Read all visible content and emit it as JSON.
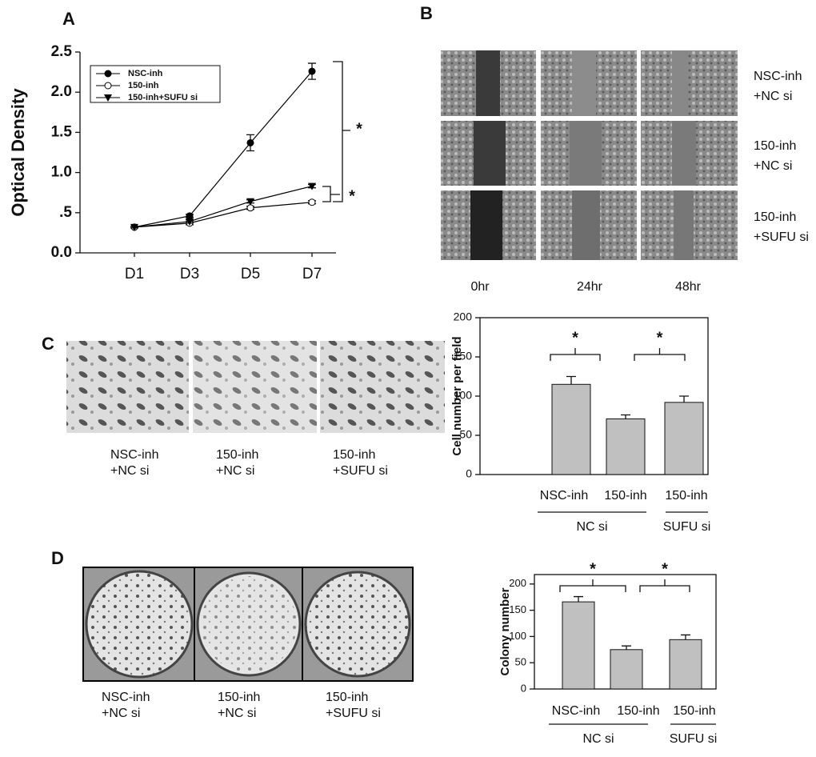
{
  "panel_labels": [
    "A",
    "B",
    "C",
    "D"
  ],
  "chart_data": [
    {
      "type": "line",
      "ylabel": "Optical Density",
      "categories": [
        "D1",
        "D3",
        "D5",
        "D7"
      ],
      "ylim": [
        0,
        2.5
      ],
      "yticks": [
        {
          "value": 0,
          "label": "0.0"
        },
        {
          "value": 0.5,
          "label": ".5"
        },
        {
          "value": 1,
          "label": "1.0"
        },
        {
          "value": 1.5,
          "label": "1.5"
        },
        {
          "value": 2,
          "label": "2.0"
        },
        {
          "value": 2.5,
          "label": "2.5"
        }
      ],
      "series": [
        {
          "name": "NSC-inh",
          "color": "#000000",
          "marker": "circle-filled",
          "values": [
            0.32,
            0.46,
            1.37,
            2.26
          ],
          "errors": [
            0.01,
            0.02,
            0.1,
            0.1
          ]
        },
        {
          "name": "150-inh",
          "color": "#000000",
          "marker": "circle-open",
          "values": [
            0.32,
            0.37,
            0.56,
            0.63
          ],
          "errors": [
            0.01,
            0.02,
            0.02,
            0.02
          ]
        },
        {
          "name": "150-inh+SUFU si",
          "color": "#000000",
          "marker": "triangle-down",
          "values": [
            0.32,
            0.39,
            0.64,
            0.83
          ],
          "errors": [
            0.01,
            0.02,
            0.02,
            0.02
          ]
        }
      ],
      "annotations": [
        "*",
        "*"
      ]
    },
    {
      "type": "bar",
      "ylabel": "Cell number per field",
      "categories": [
        "NSC-inh",
        "150-inh",
        "150-inh"
      ],
      "group_labels": [
        "NC si",
        "SUFU si"
      ],
      "values": [
        115,
        71,
        92
      ],
      "errors": [
        10,
        5,
        8
      ],
      "color": "#c0c0c0",
      "ylim": [
        0,
        200
      ],
      "yticks": [
        0,
        50,
        100,
        150,
        200
      ],
      "annotations": [
        "*",
        "*"
      ]
    },
    {
      "type": "bar",
      "ylabel": "Colony number",
      "categories": [
        "NSC-inh",
        "150-inh",
        "150-inh"
      ],
      "group_labels": [
        "NC si",
        "SUFU si"
      ],
      "values": [
        166,
        75,
        94
      ],
      "errors": [
        10,
        7,
        9
      ],
      "color": "#c0c0c0",
      "ylim": [
        0,
        218
      ],
      "yticks": [
        0,
        50,
        100,
        150,
        200
      ],
      "annotations": [
        "*",
        "*"
      ]
    }
  ],
  "panel_b": {
    "row_labels": [
      [
        "NSC-inh",
        "+NC si"
      ],
      [
        "150-inh",
        "+NC si"
      ],
      [
        "150-inh",
        "+SUFU si"
      ]
    ],
    "time_labels": [
      "0hr",
      "24hr",
      "48hr"
    ]
  },
  "panel_c": {
    "image_labels": [
      [
        "NSC-inh",
        "+NC si"
      ],
      [
        "150-inh",
        "+NC si"
      ],
      [
        "150-inh",
        "+SUFU si"
      ]
    ]
  },
  "panel_d": {
    "image_labels": [
      [
        "NSC-inh",
        "+NC si"
      ],
      [
        "150-inh",
        "+NC si"
      ],
      [
        "150-inh",
        "+SUFU si"
      ]
    ]
  }
}
